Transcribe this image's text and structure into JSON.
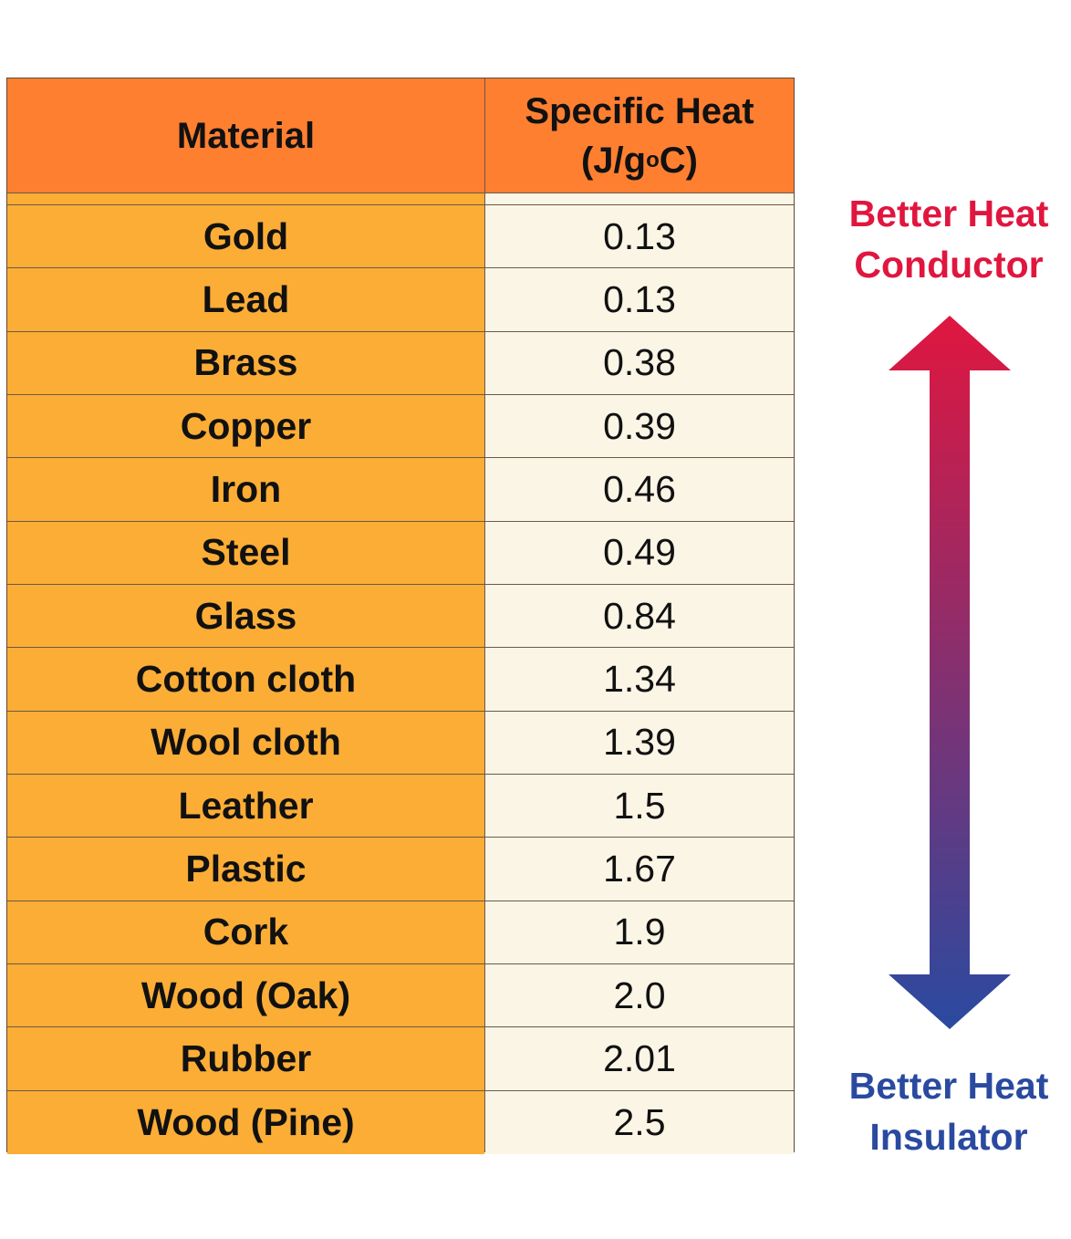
{
  "chart_data": {
    "type": "table",
    "columns": [
      "Material",
      "Specific Heat (J/g°C)"
    ],
    "header": {
      "material": "Material",
      "value_line1": "Specific Heat",
      "value_line2_pre": "(J/g",
      "value_line2_sup": "o",
      "value_line2_post": "C)"
    },
    "rows": [
      {
        "material": "Gold",
        "value": "0.13"
      },
      {
        "material": "Lead",
        "value": "0.13"
      },
      {
        "material": "Brass",
        "value": "0.38"
      },
      {
        "material": "Copper",
        "value": "0.39"
      },
      {
        "material": "Iron",
        "value": "0.46"
      },
      {
        "material": "Steel",
        "value": "0.49"
      },
      {
        "material": "Glass",
        "value": "0.84"
      },
      {
        "material": "Cotton cloth",
        "value": "1.34"
      },
      {
        "material": "Wool cloth",
        "value": "1.39"
      },
      {
        "material": "Leather",
        "value": "1.5"
      },
      {
        "material": "Plastic",
        "value": "1.67"
      },
      {
        "material": "Cork",
        "value": "1.9"
      },
      {
        "material": "Wood (Oak)",
        "value": "2.0"
      },
      {
        "material": "Rubber",
        "value": "2.01"
      },
      {
        "material": "Wood (Pine)",
        "value": "2.5"
      }
    ]
  },
  "legend": {
    "top_line1": "Better Heat",
    "top_line2": "Conductor",
    "bottom_line1": "Better Heat",
    "bottom_line2": "Insulator"
  },
  "colors": {
    "header_bg": "#ff7f31",
    "material_bg": "#fbad36",
    "value_bg": "#fbf5e6",
    "conductor": "#e0163f",
    "insulator": "#2a4aa0"
  }
}
